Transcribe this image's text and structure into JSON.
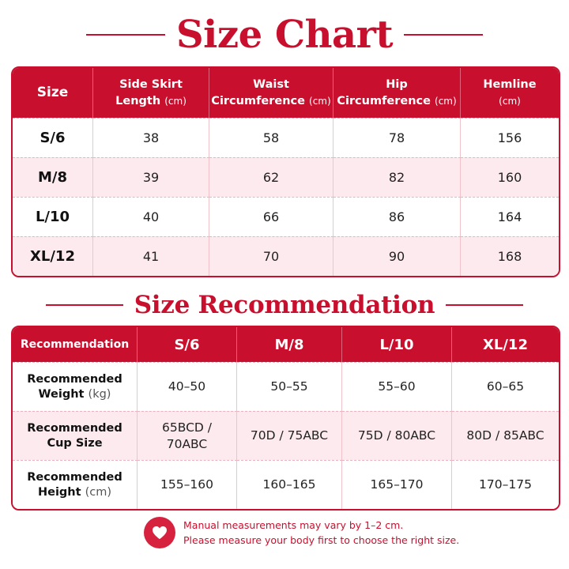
{
  "size_chart": {
    "title": "Size Chart",
    "headers": [
      {
        "label": "Size",
        "unit": ""
      },
      {
        "label": "Side Skirt",
        "label2": "Length",
        "unit": "(cm)"
      },
      {
        "label": "Waist",
        "label2": "Circumference",
        "unit": "(cm)"
      },
      {
        "label": "Hip",
        "label2": "Circumference",
        "unit": "(cm)"
      },
      {
        "label": "Hemline",
        "label2": "",
        "unit": "(cm)"
      }
    ],
    "rows": [
      {
        "size": "S/6",
        "values": [
          "38",
          "58",
          "78",
          "156"
        ]
      },
      {
        "size": "M/8",
        "values": [
          "39",
          "62",
          "82",
          "160"
        ]
      },
      {
        "size": "L/10",
        "values": [
          "40",
          "66",
          "86",
          "164"
        ]
      },
      {
        "size": "XL/12",
        "values": [
          "41",
          "70",
          "90",
          "168"
        ]
      }
    ]
  },
  "size_recommendation": {
    "title": "Size Recommendation",
    "headers": [
      "Recommendation",
      "S/6",
      "M/8",
      "L/10",
      "XL/12"
    ],
    "rows": [
      {
        "label": "Recommended",
        "label2": "Weight",
        "unit": "(kg)",
        "values": [
          "40–50",
          "50–55",
          "55–60",
          "60–65"
        ]
      },
      {
        "label": "Recommended",
        "label2": "Cup Size",
        "unit": "",
        "values": [
          "65BCD /\n70ABC",
          "70D / 75ABC",
          "75D / 80ABC",
          "80D / 85ABC"
        ]
      },
      {
        "label": "Recommended",
        "label2": "Height",
        "unit": "(cm)",
        "values": [
          "155–160",
          "160–165",
          "165–170",
          "170–175"
        ]
      }
    ]
  },
  "footer": {
    "icon": "heart-icon",
    "line1": "Manual measurements may vary by 1–2 cm.",
    "line2": "Please measure your body first to choose the right size."
  },
  "colors": {
    "accent": "#c8102e",
    "row_shade": "#fdeaee",
    "background": "#ffffff"
  }
}
